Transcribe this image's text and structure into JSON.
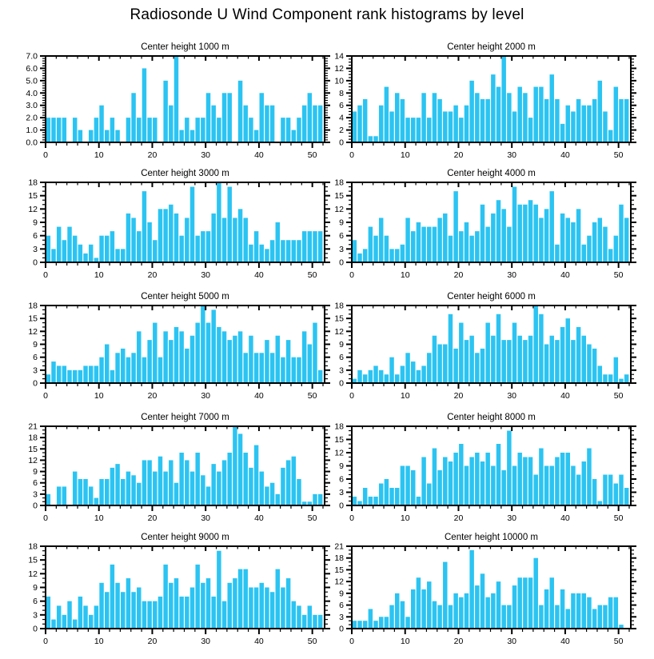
{
  "title": "Radiosonde U Wind Component rank histograms by level",
  "bar_color": "#2BC4F2",
  "axis_color": "#000000",
  "chart_data": [
    {
      "type": "bar",
      "title": "Center height 1000 m",
      "xlabel": "",
      "ylabel": "",
      "xlim": [
        0,
        52.3
      ],
      "ylim": [
        0,
        7
      ],
      "x_ticks": [
        0,
        10,
        20,
        30,
        40,
        50
      ],
      "x_minor_step": 2,
      "y_tick_step": 1,
      "y_minor_per_major": 4,
      "y_tick_labels": [
        "0.0",
        "1.0",
        "2.0",
        "3.0",
        "4.0",
        "5.0",
        "6.0",
        "7.0"
      ],
      "grid": false,
      "values": [
        2,
        2,
        2,
        2,
        0,
        2,
        1,
        0,
        1,
        2,
        3,
        1,
        2,
        1,
        0,
        2,
        4,
        2,
        6,
        2,
        2,
        0,
        5,
        3,
        7,
        1,
        2,
        1,
        2,
        2,
        4,
        3,
        2,
        4,
        4,
        0,
        5,
        3,
        2,
        1,
        4,
        3,
        3,
        0,
        2,
        2,
        1,
        2,
        3,
        4,
        3,
        3
      ]
    },
    {
      "type": "bar",
      "title": "Center height 2000 m",
      "xlabel": "",
      "ylabel": "",
      "xlim": [
        0,
        52.3
      ],
      "ylim": [
        0,
        14
      ],
      "x_ticks": [
        0,
        10,
        20,
        30,
        40,
        50
      ],
      "x_minor_step": 2,
      "y_tick_step": 2,
      "y_minor_per_major": 3,
      "y_tick_labels": [
        "0",
        "2",
        "4",
        "6",
        "8",
        "10",
        "12",
        "14"
      ],
      "grid": false,
      "values": [
        5,
        6,
        7,
        1,
        1,
        6,
        9,
        5,
        8,
        7,
        4,
        4,
        4,
        8,
        4,
        8,
        7,
        5,
        5,
        6,
        4,
        6,
        10,
        8,
        7,
        7,
        11,
        9,
        14,
        8,
        5,
        9,
        8,
        4,
        9,
        9,
        7,
        11,
        7,
        3,
        6,
        5,
        7,
        6,
        6,
        7,
        10,
        5,
        2,
        9,
        7,
        7
      ]
    },
    {
      "type": "bar",
      "title": "Center height 3000 m",
      "xlabel": "",
      "ylabel": "",
      "xlim": [
        0,
        52.3
      ],
      "ylim": [
        0,
        18
      ],
      "x_ticks": [
        0,
        10,
        20,
        30,
        40,
        50
      ],
      "x_minor_step": 2,
      "y_tick_step": 3,
      "y_minor_per_major": 2,
      "y_tick_labels": [
        "0",
        "3",
        "6",
        "9",
        "12",
        "15",
        "18"
      ],
      "grid": false,
      "values": [
        6,
        3,
        8,
        5,
        8,
        6,
        4,
        2,
        4,
        1,
        6,
        6,
        7,
        3,
        3,
        11,
        10,
        7,
        16,
        9,
        5,
        12,
        12,
        13,
        11,
        6,
        10,
        17,
        6,
        7,
        7,
        11,
        18,
        10,
        17,
        10,
        12,
        10,
        4,
        7,
        4,
        3,
        5,
        9,
        5,
        5,
        5,
        5,
        7,
        7,
        7,
        7
      ]
    },
    {
      "type": "bar",
      "title": "Center height 4000 m",
      "xlabel": "",
      "ylabel": "",
      "xlim": [
        0,
        52.3
      ],
      "ylim": [
        0,
        18
      ],
      "x_ticks": [
        0,
        10,
        20,
        30,
        40,
        50
      ],
      "x_minor_step": 2,
      "y_tick_step": 3,
      "y_minor_per_major": 2,
      "y_tick_labels": [
        "0",
        "3",
        "6",
        "9",
        "12",
        "15",
        "18"
      ],
      "grid": false,
      "values": [
        5,
        2,
        3,
        8,
        6,
        10,
        6,
        3,
        3,
        4,
        10,
        7,
        9,
        8,
        8,
        8,
        10,
        11,
        6,
        16,
        7,
        9,
        6,
        7,
        13,
        8,
        11,
        14,
        12,
        8,
        17,
        13,
        13,
        14,
        13,
        10,
        12,
        16,
        4,
        11,
        10,
        9,
        12,
        4,
        6,
        9,
        10,
        8,
        3,
        6,
        13,
        10
      ]
    },
    {
      "type": "bar",
      "title": "Center height 5000 m",
      "xlabel": "",
      "ylabel": "",
      "xlim": [
        0,
        52.3
      ],
      "ylim": [
        0,
        18
      ],
      "x_ticks": [
        0,
        10,
        20,
        30,
        40,
        50
      ],
      "x_minor_step": 2,
      "y_tick_step": 3,
      "y_minor_per_major": 2,
      "y_tick_labels": [
        "0",
        "3",
        "6",
        "9",
        "12",
        "15",
        "18"
      ],
      "grid": false,
      "values": [
        2,
        5,
        4,
        4,
        3,
        3,
        3,
        4,
        4,
        4,
        6,
        9,
        3,
        7,
        8,
        6,
        7,
        12,
        6,
        10,
        14,
        6,
        12,
        10,
        13,
        12,
        8,
        11,
        14,
        18,
        14,
        17,
        13,
        12,
        10,
        11,
        12,
        7,
        11,
        7,
        7,
        10,
        7,
        11,
        6,
        10,
        6,
        6,
        12,
        9,
        14,
        3
      ]
    },
    {
      "type": "bar",
      "title": "Center height 6000 m",
      "xlabel": "",
      "ylabel": "",
      "xlim": [
        0,
        52.3
      ],
      "ylim": [
        0,
        18
      ],
      "x_ticks": [
        0,
        10,
        20,
        30,
        40,
        50
      ],
      "x_minor_step": 2,
      "y_tick_step": 3,
      "y_minor_per_major": 2,
      "y_tick_labels": [
        "0",
        "3",
        "6",
        "9",
        "12",
        "15",
        "18"
      ],
      "grid": false,
      "values": [
        1,
        3,
        2,
        3,
        4,
        3,
        2,
        6,
        2,
        4,
        7,
        5,
        3,
        4,
        7,
        11,
        9,
        9,
        16,
        8,
        14,
        10,
        11,
        7,
        8,
        14,
        11,
        16,
        10,
        10,
        14,
        11,
        10,
        11,
        18,
        16,
        9,
        11,
        10,
        13,
        15,
        10,
        13,
        11,
        9,
        8,
        4,
        2,
        2,
        6,
        1,
        2
      ]
    },
    {
      "type": "bar",
      "title": "Center height 7000 m",
      "xlabel": "",
      "ylabel": "",
      "xlim": [
        0,
        52.3
      ],
      "ylim": [
        0,
        21
      ],
      "x_ticks": [
        0,
        10,
        20,
        30,
        40,
        50
      ],
      "x_minor_step": 2,
      "y_tick_step": 3,
      "y_minor_per_major": 2,
      "y_tick_labels": [
        "0",
        "3",
        "6",
        "9",
        "12",
        "15",
        "18",
        "21"
      ],
      "grid": false,
      "values": [
        3,
        0,
        5,
        5,
        0,
        9,
        7,
        7,
        5,
        2,
        7,
        7,
        10,
        11,
        7,
        9,
        8,
        6,
        12,
        12,
        9,
        13,
        9,
        12,
        6,
        14,
        12,
        9,
        14,
        8,
        5,
        11,
        9,
        12,
        14,
        21,
        19,
        14,
        10,
        16,
        9,
        5,
        6,
        3,
        10,
        12,
        13,
        7,
        1,
        1,
        3,
        3
      ]
    },
    {
      "type": "bar",
      "title": "Center height 8000 m",
      "xlabel": "",
      "ylabel": "",
      "xlim": [
        0,
        52.3
      ],
      "ylim": [
        0,
        18
      ],
      "x_ticks": [
        0,
        10,
        20,
        30,
        40,
        50
      ],
      "x_minor_step": 2,
      "y_tick_step": 3,
      "y_minor_per_major": 2,
      "y_tick_labels": [
        "0",
        "3",
        "6",
        "9",
        "12",
        "15",
        "18"
      ],
      "grid": false,
      "values": [
        2,
        1,
        4,
        2,
        2,
        5,
        6,
        4,
        4,
        9,
        9,
        8,
        2,
        11,
        5,
        13,
        8,
        11,
        10,
        12,
        14,
        9,
        11,
        12,
        10,
        12,
        9,
        14,
        8,
        17,
        9,
        12,
        11,
        11,
        7,
        13,
        9,
        9,
        11,
        12,
        12,
        9,
        7,
        10,
        13,
        6,
        1,
        7,
        7,
        5,
        7,
        4
      ]
    },
    {
      "type": "bar",
      "title": "Center height 9000 m",
      "xlabel": "",
      "ylabel": "",
      "xlim": [
        0,
        52.3
      ],
      "ylim": [
        0,
        18
      ],
      "x_ticks": [
        0,
        10,
        20,
        30,
        40,
        50
      ],
      "x_minor_step": 2,
      "y_tick_step": 3,
      "y_minor_per_major": 2,
      "y_tick_labels": [
        "0",
        "3",
        "6",
        "9",
        "12",
        "15",
        "18"
      ],
      "grid": false,
      "values": [
        7,
        2,
        5,
        3,
        6,
        2,
        7,
        5,
        3,
        5,
        10,
        8,
        14,
        10,
        8,
        11,
        8,
        9,
        6,
        6,
        6,
        7,
        14,
        10,
        11,
        7,
        7,
        9,
        14,
        10,
        11,
        7,
        17,
        6,
        10,
        11,
        13,
        13,
        9,
        9,
        10,
        9,
        8,
        13,
        9,
        11,
        6,
        5,
        3,
        5,
        3,
        3
      ]
    },
    {
      "type": "bar",
      "title": "Center height 10000 m",
      "xlabel": "",
      "ylabel": "",
      "xlim": [
        0,
        52.3
      ],
      "ylim": [
        0,
        21
      ],
      "x_ticks": [
        0,
        10,
        20,
        30,
        40,
        50
      ],
      "x_minor_step": 2,
      "y_tick_step": 3,
      "y_minor_per_major": 2,
      "y_tick_labels": [
        "0",
        "3",
        "6",
        "9",
        "12",
        "15",
        "18",
        "21"
      ],
      "grid": false,
      "values": [
        2,
        2,
        2,
        5,
        2,
        3,
        3,
        6,
        9,
        7,
        3,
        10,
        13,
        10,
        12,
        7,
        6,
        17,
        6,
        9,
        8,
        9,
        20,
        11,
        14,
        8,
        9,
        12,
        6,
        6,
        11,
        13,
        13,
        13,
        18,
        6,
        10,
        13,
        6,
        10,
        5,
        9,
        9,
        9,
        8,
        5,
        6,
        6,
        8,
        8,
        1,
        0
      ]
    }
  ]
}
